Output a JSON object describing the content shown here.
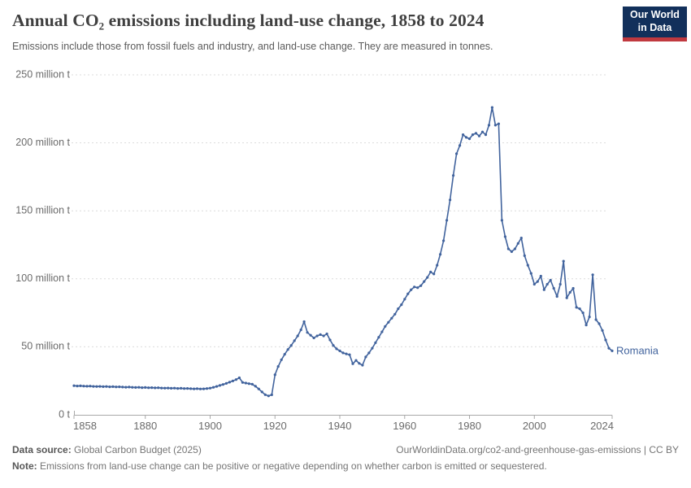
{
  "header": {
    "title": "Annual CO₂ emissions including land-use change, 1858 to 2024",
    "subtitle": "Emissions include those from fossil fuels and industry, and land-use change. They are measured in tonnes."
  },
  "logo": {
    "line1": "Our World",
    "line2": "in Data",
    "bg_color": "#12305b",
    "accent_color": "#c0393f"
  },
  "chart_data": {
    "type": "line",
    "title": "Annual CO₂ emissions including land-use change, 1858 to 2024",
    "entity": "Romania",
    "unit": "million t",
    "line_color": "#41639d",
    "grid": true,
    "legend_position": "end-of-line",
    "ylim": [
      0,
      250
    ],
    "yticks": [
      {
        "v": 0,
        "label": "0 t"
      },
      {
        "v": 50,
        "label": "50 million t"
      },
      {
        "v": 100,
        "label": "100 million t"
      },
      {
        "v": 150,
        "label": "150 million t"
      },
      {
        "v": 200,
        "label": "200 million t"
      },
      {
        "v": 250,
        "label": "250 million t"
      }
    ],
    "xticks": [
      1858,
      1880,
      1900,
      1920,
      1940,
      1960,
      1980,
      2000,
      2024
    ],
    "x_start": 1858,
    "x_end": 2024,
    "x_step": 1,
    "values": [
      21.4,
      21.2,
      21.3,
      21.1,
      21.0,
      21.1,
      20.9,
      20.8,
      20.9,
      20.7,
      20.8,
      20.6,
      20.7,
      20.5,
      20.6,
      20.4,
      20.3,
      20.4,
      20.2,
      20.1,
      20.2,
      20.0,
      20.1,
      19.9,
      20.0,
      19.8,
      19.9,
      19.7,
      19.6,
      19.7,
      19.5,
      19.6,
      19.4,
      19.5,
      19.3,
      19.4,
      19.2,
      19.1,
      19.2,
      19.0,
      19.1,
      19.3,
      19.6,
      20.2,
      20.9,
      21.6,
      22.3,
      23.1,
      24.0,
      24.9,
      25.9,
      27.2,
      23.8,
      23.3,
      22.9,
      22.5,
      21.0,
      19.0,
      16.8,
      14.8,
      13.9,
      14.7,
      29.5,
      35.5,
      40.5,
      44.5,
      48.0,
      51.0,
      54.5,
      58.0,
      62.5,
      68.5,
      60.5,
      58.5,
      56.5,
      58.0,
      59.0,
      58.0,
      59.5,
      55.0,
      51.0,
      48.5,
      47.0,
      45.5,
      44.8,
      44.2,
      37.5,
      40.0,
      37.8,
      36.5,
      42.5,
      45.5,
      49,
      53,
      57,
      61,
      65,
      68,
      71,
      74,
      78,
      81,
      85,
      89,
      92,
      94,
      93.5,
      95,
      98,
      101,
      105,
      103.5,
      110,
      118,
      128,
      143,
      158,
      176,
      192,
      198,
      206,
      204,
      203,
      206,
      207,
      205,
      208,
      206,
      213,
      226,
      213,
      214,
      143,
      131,
      122,
      120,
      122,
      126,
      130,
      117,
      110,
      104,
      96,
      98,
      102,
      92,
      96,
      99,
      93,
      87,
      96,
      113,
      86,
      90,
      93,
      79,
      78,
      75,
      66,
      72,
      103,
      70,
      67,
      62,
      55,
      49,
      47
    ]
  },
  "footer": {
    "datasource_label": "Data source:",
    "datasource": "Global Carbon Budget (2025)",
    "credit": "OurWorldinData.org/co2-and-greenhouse-gas-emissions | CC BY",
    "note_label": "Note:",
    "note": "Emissions from land-use change can be positive or negative depending on whether carbon is emitted or sequestered."
  }
}
